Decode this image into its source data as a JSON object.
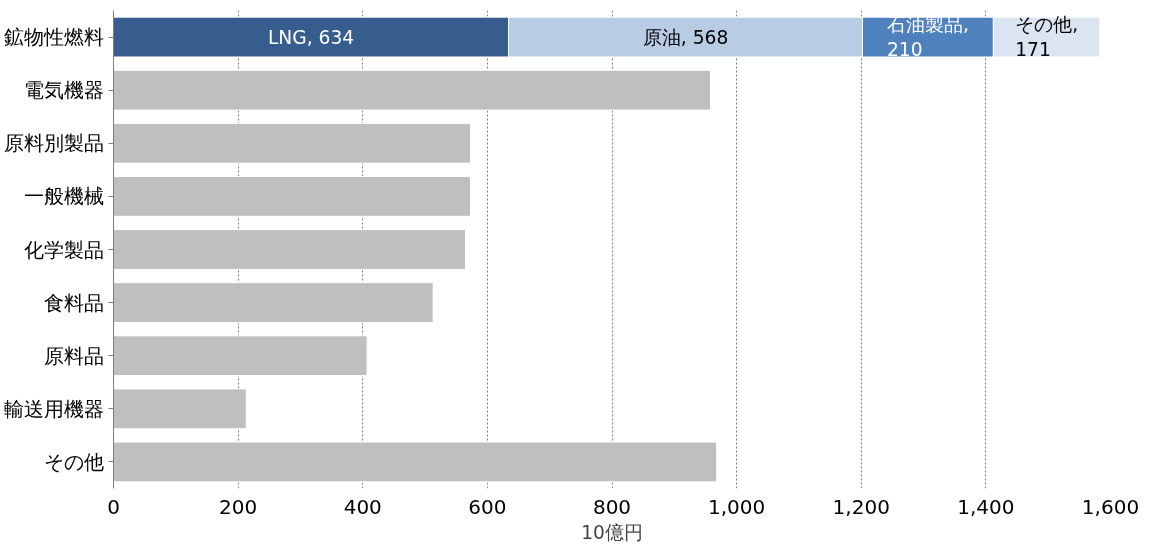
{
  "chart_data": {
    "type": "bar",
    "orientation": "horizontal",
    "stacked": true,
    "categories": [
      "鉱物性燃料",
      "電気機器",
      "原料別製品",
      "一般機械",
      "化学製品",
      "食料品",
      "原料品",
      "輸送用機器",
      "その他"
    ],
    "series": [
      {
        "color": "#375d8f",
        "values": [
          634,
          null,
          null,
          null,
          null,
          null,
          null,
          null,
          null
        ],
        "value_labels": [
          "LNG, 634",
          null,
          null,
          null,
          null,
          null,
          null,
          null,
          null
        ]
      },
      {
        "color": "#b8cce4",
        "values": [
          568,
          null,
          null,
          null,
          null,
          null,
          null,
          null,
          null
        ],
        "value_labels": [
          "原油, 568",
          null,
          null,
          null,
          null,
          null,
          null,
          null,
          null
        ]
      },
      {
        "color": "#4f81bd",
        "values": [
          210,
          null,
          null,
          null,
          null,
          null,
          null,
          null,
          null
        ],
        "value_labels": [
          "石油製品, 210",
          null,
          null,
          null,
          null,
          null,
          null,
          null,
          null
        ]
      },
      {
        "color": "#dbe5f1",
        "values": [
          171,
          null,
          null,
          null,
          null,
          null,
          null,
          null,
          null
        ],
        "value_labels": [
          "その他, 171",
          null,
          null,
          null,
          null,
          null,
          null,
          null,
          null
        ]
      },
      {
        "color": "#bfbfbf",
        "values": [
          null,
          958,
          573,
          573,
          565,
          513,
          407,
          213,
          968
        ]
      }
    ],
    "xlabel": "10億円",
    "xlim": [
      0,
      1600
    ],
    "xticks": [
      0,
      200,
      400,
      600,
      800,
      {
        "value": 1000,
        "label": "1,000"
      },
      {
        "value": 1200,
        "label": "1,200"
      },
      {
        "value": 1400,
        "label": "1,400"
      },
      {
        "value": 1600,
        "label": "1,600"
      }
    ],
    "grid": "x"
  }
}
